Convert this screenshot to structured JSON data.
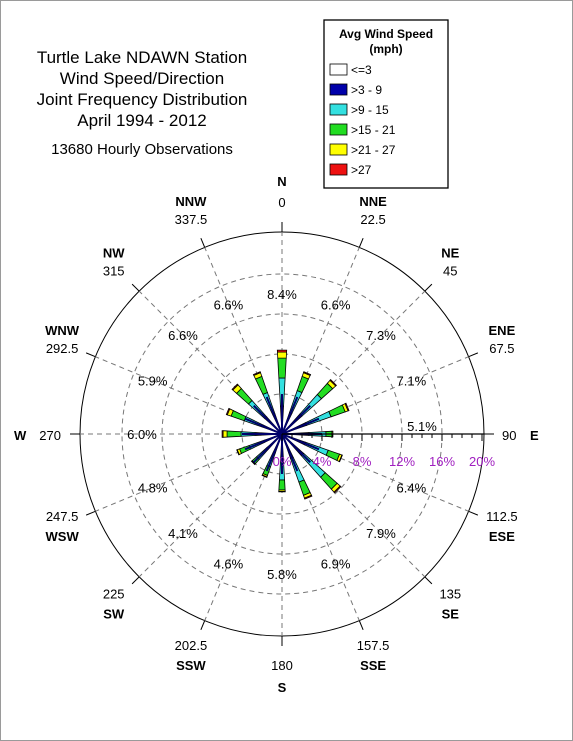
{
  "chart_data": {
    "type": "polar-stacked-bar",
    "title": [
      "Turtle Lake NDAWN Station",
      "Wind Speed/Direction",
      "Joint Frequency Distribution",
      "April 1994 - 2012"
    ],
    "subtitle": "13680 Hourly Observations",
    "legend": {
      "title": [
        "Avg Wind Speed",
        "(mph)"
      ],
      "placement": "top-right",
      "classes": [
        {
          "label": "<=3",
          "color": "#ffffff"
        },
        {
          "label": ">3 - 9",
          "color": "#0000aa"
        },
        {
          "label": ">9 - 15",
          "color": "#33e0e0"
        },
        {
          "label": ">15 - 21",
          "color": "#22dd22"
        },
        {
          "label": ">21 - 27",
          "color": "#ffff00"
        },
        {
          "label": ">27",
          "color": "#ee1111"
        }
      ]
    },
    "radial_axis": {
      "ticks": [
        0,
        4,
        8,
        12,
        16,
        20
      ],
      "tick_labels": [
        "0%",
        "4%",
        "8%",
        "12%",
        "16%",
        "20%"
      ],
      "max": 20,
      "grid": "dashed",
      "label_color": "#a020c0"
    },
    "directions": [
      {
        "abbr": "N",
        "deg": "0"
      },
      {
        "abbr": "NNE",
        "deg": "22.5"
      },
      {
        "abbr": "NE",
        "deg": "45"
      },
      {
        "abbr": "ENE",
        "deg": "67.5"
      },
      {
        "abbr": "E",
        "deg": "90"
      },
      {
        "abbr": "ESE",
        "deg": "112.5"
      },
      {
        "abbr": "SE",
        "deg": "135"
      },
      {
        "abbr": "SSE",
        "deg": "157.5"
      },
      {
        "abbr": "S",
        "deg": "180"
      },
      {
        "abbr": "SSW",
        "deg": "202.5"
      },
      {
        "abbr": "SW",
        "deg": "225"
      },
      {
        "abbr": "WSW",
        "deg": "247.5"
      },
      {
        "abbr": "W",
        "deg": "270"
      },
      {
        "abbr": "WNW",
        "deg": "292.5"
      },
      {
        "abbr": "NW",
        "deg": "315"
      },
      {
        "abbr": "NNW",
        "deg": "337.5"
      }
    ],
    "frequencies": [
      "8.4%",
      "6.6%",
      "7.3%",
      "7.1%",
      "5.1%",
      "6.4%",
      "7.9%",
      "6.9%",
      "5.8%",
      "4.6%",
      "4.1%",
      "4.8%",
      "6.0%",
      "5.9%",
      "6.6%",
      "6.6%"
    ],
    "series": [
      {
        "name": "<=3",
        "values": [
          0.3,
          0.3,
          0.3,
          0.3,
          0.3,
          0.3,
          0.3,
          0.3,
          0.3,
          0.3,
          0.3,
          0.3,
          0.3,
          0.3,
          0.3,
          0.3
        ]
      },
      {
        "name": ">3 - 9",
        "values": [
          2.5,
          2.0,
          2.4,
          2.3,
          2.4,
          2.2,
          2.6,
          2.3,
          2.3,
          1.7,
          1.7,
          1.6,
          1.8,
          1.8,
          2.0,
          1.8
        ]
      },
      {
        "name": ">9 - 15",
        "values": [
          2.8,
          2.3,
          2.6,
          2.6,
          1.7,
          2.4,
          2.9,
          2.5,
          2.0,
          1.5,
          1.4,
          1.6,
          2.0,
          1.9,
          2.2,
          2.3
        ]
      },
      {
        "name": ">15 - 21",
        "values": [
          2.0,
          1.5,
          1.5,
          1.5,
          0.6,
          1.2,
          1.6,
          1.4,
          1.0,
          0.9,
          0.6,
          1.0,
          1.4,
          1.4,
          1.6,
          1.7
        ]
      },
      {
        "name": ">21 - 27",
        "values": [
          0.6,
          0.4,
          0.4,
          0.3,
          0.1,
          0.25,
          0.4,
          0.3,
          0.15,
          0.15,
          0.07,
          0.25,
          0.4,
          0.4,
          0.5,
          0.4
        ]
      },
      {
        "name": ">27",
        "values": [
          0.2,
          0.1,
          0.1,
          0.1,
          0.0,
          0.05,
          0.1,
          0.1,
          0.05,
          0.05,
          0.03,
          0.05,
          0.1,
          0.1,
          0.1,
          0.1
        ]
      }
    ]
  }
}
